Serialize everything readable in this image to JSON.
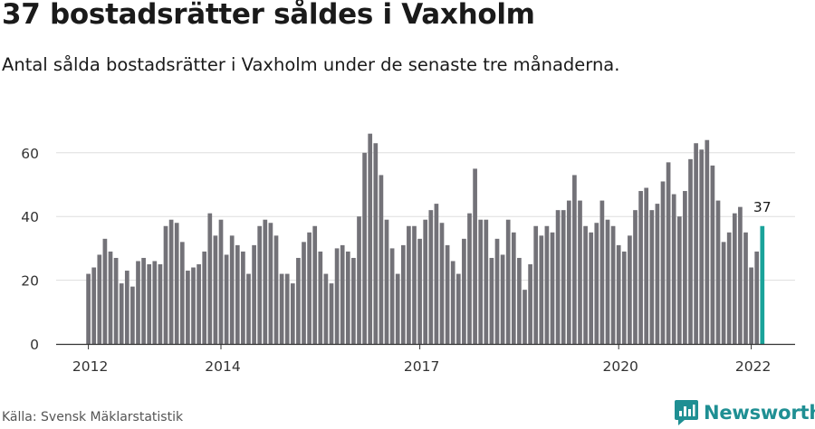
{
  "title": "37 bostadsrätter såldes i Vaxholm",
  "subtitle": "Antal sålda bostadsrätter i Vaxholm under de senaste tre månaderna.",
  "source": "Källa: Svensk Mäklarstatistik",
  "brand": "Newsworthy",
  "colors": {
    "bar": "#737278",
    "highlight": "#1aa39a",
    "grid": "#dedede",
    "brand": "#1f8f93"
  },
  "chart_data": {
    "type": "bar",
    "title": "37 bostadsrätter såldes i Vaxholm",
    "xlabel": "",
    "ylabel": "",
    "ylim": [
      0,
      70
    ],
    "yticks": [
      0,
      20,
      40,
      60
    ],
    "x_start_month": "2012-01",
    "xticks": [
      {
        "label": "2012",
        "index": 0
      },
      {
        "label": "2014",
        "index": 24
      },
      {
        "label": "2017",
        "index": 60
      },
      {
        "label": "2020",
        "index": 96
      },
      {
        "label": "2022",
        "index": 120
      }
    ],
    "values": [
      22,
      24,
      28,
      33,
      29,
      27,
      19,
      23,
      18,
      26,
      27,
      25,
      26,
      25,
      37,
      39,
      38,
      32,
      23,
      24,
      25,
      29,
      41,
      34,
      39,
      28,
      34,
      31,
      29,
      22,
      31,
      37,
      39,
      38,
      34,
      22,
      22,
      19,
      27,
      32,
      35,
      37,
      29,
      22,
      19,
      30,
      31,
      29,
      27,
      40,
      60,
      66,
      63,
      53,
      39,
      30,
      22,
      31,
      37,
      37,
      33,
      39,
      42,
      44,
      38,
      31,
      26,
      22,
      33,
      41,
      55,
      39,
      39,
      27,
      33,
      28,
      39,
      35,
      27,
      17,
      25,
      37,
      34,
      37,
      35,
      42,
      42,
      45,
      53,
      45,
      37,
      35,
      38,
      45,
      39,
      37,
      31,
      29,
      34,
      42,
      48,
      49,
      42,
      44,
      51,
      57,
      47,
      40,
      48,
      58,
      63,
      61,
      64,
      56,
      45,
      32,
      35,
      41,
      43,
      35,
      24,
      29,
      37
    ],
    "highlight_index": 122,
    "highlight_label": "37"
  }
}
